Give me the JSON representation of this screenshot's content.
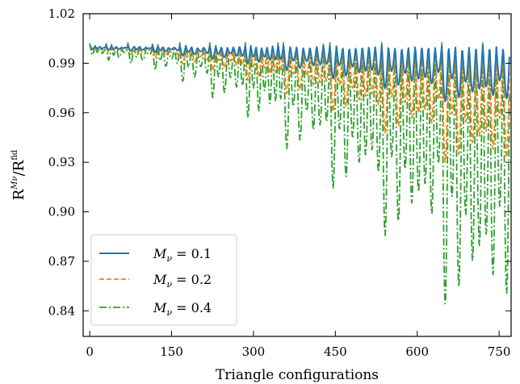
{
  "chart_data": {
    "type": "line",
    "xlabel": "Triangle configurations",
    "ylabel": "R^{M_ν}/R^{fid}",
    "ylabel_main": "R",
    "ylabel_sup": "Mν",
    "ylabel_slash": "/",
    "ylabel_main2": "R",
    "ylabel_sup2": "fid",
    "xlim": [
      -12,
      772
    ],
    "ylim": [
      0.8245,
      1.02
    ],
    "x_ticks": [
      0,
      150,
      300,
      450,
      600,
      750
    ],
    "x_tick_labels": [
      "0",
      "150",
      "300",
      "450",
      "600",
      "750"
    ],
    "y_ticks": [
      0.84,
      0.87,
      0.9,
      0.93,
      0.96,
      0.99,
      1.02
    ],
    "y_tick_labels": [
      "0.84",
      "0.87",
      "0.90",
      "0.93",
      "0.96",
      "0.99",
      "1.02"
    ],
    "grid": false,
    "legend_position": "lower-left",
    "legend": [
      "M_ν = 0.1",
      "M_ν = 0.2",
      "M_ν = 0.4"
    ],
    "legend_labels": {
      "s1": {
        "sym": "M",
        "sub": "ν",
        "val": " = 0.1"
      },
      "s2": {
        "sym": "M",
        "sub": "ν",
        "val": " = 0.2"
      },
      "s3": {
        "sym": "M",
        "sub": "ν",
        "val": " = 0.4"
      }
    },
    "x_count": 770,
    "groups": [
      {
        "start": 0,
        "end": 30,
        "sub": 3,
        "depth": [
          0.001,
          0.002,
          0.004
        ],
        "overshoot": [
          0.0015,
          0.002,
          0.0035
        ]
      },
      {
        "start": 30,
        "end": 70,
        "sub": 4,
        "depth": [
          0.0015,
          0.003,
          0.007
        ],
        "overshoot": [
          0.0015,
          0.002,
          0.004
        ]
      },
      {
        "start": 70,
        "end": 115,
        "sub": 4,
        "depth": [
          0.002,
          0.004,
          0.009
        ],
        "overshoot": [
          0.0015,
          0.002,
          0.004
        ]
      },
      {
        "start": 115,
        "end": 165,
        "sub": 5,
        "depth": [
          0.003,
          0.006,
          0.013
        ],
        "overshoot": [
          0.0015,
          0.002,
          0.004
        ]
      },
      {
        "start": 165,
        "end": 220,
        "sub": 5,
        "depth": [
          0.005,
          0.01,
          0.02
        ],
        "overshoot": [
          0.0015,
          0.002,
          0.004
        ]
      },
      {
        "start": 220,
        "end": 285,
        "sub": 6,
        "depth": [
          0.007,
          0.014,
          0.03
        ],
        "overshoot": [
          0.0015,
          0.002,
          0.004
        ]
      },
      {
        "start": 285,
        "end": 355,
        "sub": 7,
        "depth": [
          0.01,
          0.02,
          0.042
        ],
        "overshoot": [
          0.0015,
          0.002,
          0.004
        ]
      },
      {
        "start": 355,
        "end": 440,
        "sub": 7,
        "depth": [
          0.014,
          0.028,
          0.061
        ],
        "overshoot": [
          0.0015,
          0.002,
          0.004
        ]
      },
      {
        "start": 440,
        "end": 535,
        "sub": 8,
        "depth": [
          0.019,
          0.039,
          0.085
        ],
        "overshoot": [
          0.0015,
          0.002,
          0.004
        ]
      },
      {
        "start": 535,
        "end": 645,
        "sub": 9,
        "depth": [
          0.025,
          0.052,
          0.114
        ],
        "overshoot": [
          0.0015,
          0.002,
          0.004
        ]
      },
      {
        "start": 645,
        "end": 770,
        "sub": 10,
        "depth": [
          0.033,
          0.07,
          0.156
        ],
        "overshoot": [
          0.0015,
          0.002,
          0.004
        ]
      }
    ],
    "series": [
      {
        "name": "M_ν = 0.1",
        "color": "#1f77b4",
        "dash": "",
        "width": 2.0
      },
      {
        "name": "M_ν = 0.2",
        "color": "#ff7f0e",
        "dash": "6 3",
        "width": 1.8
      },
      {
        "name": "M_ν = 0.4",
        "color": "#2ca02c",
        "dash": "9 3 2 3",
        "width": 1.8
      }
    ]
  }
}
